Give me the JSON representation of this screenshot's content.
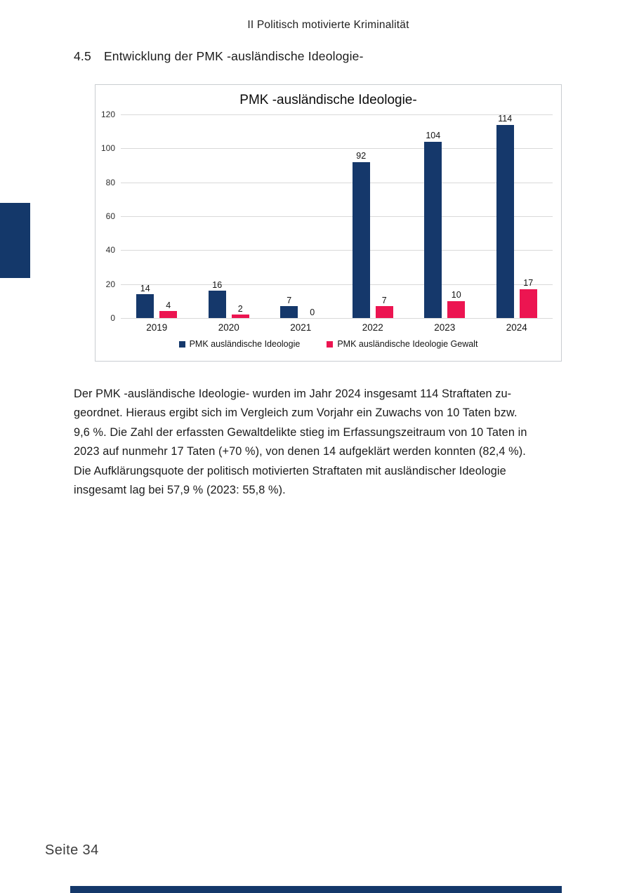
{
  "page": {
    "header": "II Politisch motivierte Kriminalität",
    "section_number": "4.5",
    "section_title": "Entwicklung der PMK -ausländische Ideologie-",
    "footer": "Seite 34"
  },
  "paragraph": {
    "lines": [
      "Der PMK -ausländische Ideologie- wurden im Jahr 2024 insgesamt 114 Straftaten zu-",
      "geordnet. Hieraus ergibt sich im Vergleich zum Vorjahr ein Zuwachs von 10 Taten bzw.",
      "9,6 %. Die Zahl der erfassten Gewaltdelikte stieg im Erfassungszeitraum von 10 Taten in",
      "2023 auf nunmehr 17 Taten (+70 %), von denen 14 aufgeklärt werden konnten (82,4 %).",
      "Die Aufklärungsquote der politisch motivierten Straftaten mit ausländischer Ideologie",
      "insgesamt lag bei 57,9 % (2023: 55,8 %)."
    ]
  },
  "chart_data": {
    "type": "bar",
    "title": "PMK -ausländische Ideologie-",
    "categories": [
      "2019",
      "2020",
      "2021",
      "2022",
      "2023",
      "2024"
    ],
    "series": [
      {
        "name": "PMK ausländische Ideologie",
        "color": "#15386B",
        "values": [
          14,
          16,
          7,
          92,
          104,
          114
        ]
      },
      {
        "name": "PMK ausländische Ideologie Gewalt",
        "color": "#EC1551",
        "values": [
          4,
          2,
          0,
          7,
          10,
          17
        ]
      }
    ],
    "ylim": [
      0,
      120
    ],
    "ytick_step": 20,
    "grid": true,
    "legend_position": "bottom"
  },
  "colors": {
    "navy": "#14386A",
    "pink": "#EC1551",
    "gridline": "#D9D9D9",
    "chart_border": "#C9CDD1"
  }
}
